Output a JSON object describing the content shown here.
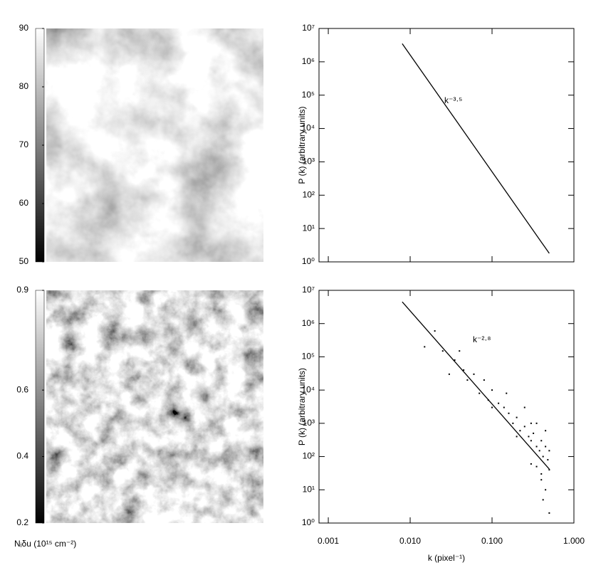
{
  "chart_data": [
    {
      "type": "image",
      "ylim": [
        50,
        90
      ],
      "yticks": [
        50,
        60,
        70,
        80,
        90
      ]
    },
    {
      "type": "line",
      "xlog": true,
      "ylog": true,
      "xlim": [
        0.00077,
        1
      ],
      "ylim": [
        1,
        10000000
      ],
      "xticks": [
        0.001,
        0.01,
        0.1,
        1
      ],
      "yticks": [
        {
          "value": 1,
          "label": "10⁰"
        },
        {
          "value": 10,
          "label": "10¹"
        },
        {
          "value": 100,
          "label": "10²"
        },
        {
          "value": 1000,
          "label": "10³"
        },
        {
          "value": 10000,
          "label": "10⁴"
        },
        {
          "value": 100000,
          "label": "10⁵"
        },
        {
          "value": 1000000,
          "label": "10⁶"
        },
        {
          "value": 10000000,
          "label": "10⁷"
        }
      ],
      "ylabel": "P (k) (arbitrary units)",
      "annotation": "k⁻³·⁵",
      "series": [
        {
          "type": "line",
          "color": "#000000",
          "x": [
            0.008,
            0.5
          ],
          "values": [
            3500000,
            1.8
          ]
        }
      ]
    },
    {
      "type": "image",
      "ylim": [
        0.2,
        0.9
      ],
      "yticks": [
        0.2,
        0.4,
        0.6,
        0.9
      ],
      "ylabel": "Nᵢδu (10¹⁵ cm⁻²)"
    },
    {
      "type": "scatter",
      "xlog": true,
      "ylog": true,
      "xlim": [
        0.00077,
        1
      ],
      "ylim": [
        1,
        10000000
      ],
      "xticks": [
        0.001,
        {
          "value": 0.01,
          "label": "0.010"
        },
        {
          "value": 0.1,
          "label": "0.100"
        },
        {
          "value": 1,
          "label": "1.000"
        }
      ],
      "yticks": [
        {
          "value": 1,
          "label": "10⁰"
        },
        {
          "value": 10,
          "label": "10¹"
        },
        {
          "value": 100,
          "label": "10²"
        },
        {
          "value": 1000,
          "label": "10³"
        },
        {
          "value": 10000,
          "label": "10⁴"
        },
        {
          "value": 100000,
          "label": "10⁵"
        },
        {
          "value": 1000000,
          "label": "10⁶"
        },
        {
          "value": 10000000,
          "label": "10⁷"
        }
      ],
      "xlabel": "k (pixel⁻¹)",
      "ylabel": "P (k) (arbitrary units)",
      "annotation": "k⁻²·⁸",
      "series": [
        {
          "type": "line",
          "color": "#000000",
          "x": [
            0.008,
            0.5
          ],
          "values": [
            4500000,
            42
          ]
        },
        {
          "type": "scatter",
          "color": "#000000",
          "x": [
            0.015,
            0.02,
            0.025,
            0.03,
            0.035,
            0.04,
            0.045,
            0.05,
            0.06,
            0.07,
            0.08,
            0.09,
            0.1,
            0.12,
            0.14,
            0.16,
            0.18,
            0.2,
            0.22,
            0.25,
            0.28,
            0.3,
            0.32,
            0.35,
            0.38,
            0.4,
            0.42,
            0.45,
            0.48,
            0.5,
            0.1,
            0.15,
            0.2,
            0.25,
            0.3,
            0.35,
            0.4,
            0.45,
            0.5,
            0.3,
            0.4,
            0.45,
            0.5,
            0.35,
            0.42
          ],
          "values": [
            200000,
            600000,
            150000,
            30000,
            80000,
            150000,
            40000,
            20000,
            30000,
            8000,
            20000,
            5000,
            10000,
            4000,
            3000,
            2000,
            1000,
            1500,
            600,
            800,
            400,
            300,
            500,
            200,
            150,
            300,
            100,
            200,
            80,
            150,
            3000,
            8000,
            400,
            3000,
            60,
            1000,
            30,
            10,
            2,
            1000,
            20,
            600,
            40,
            50,
            5
          ]
        }
      ]
    }
  ]
}
